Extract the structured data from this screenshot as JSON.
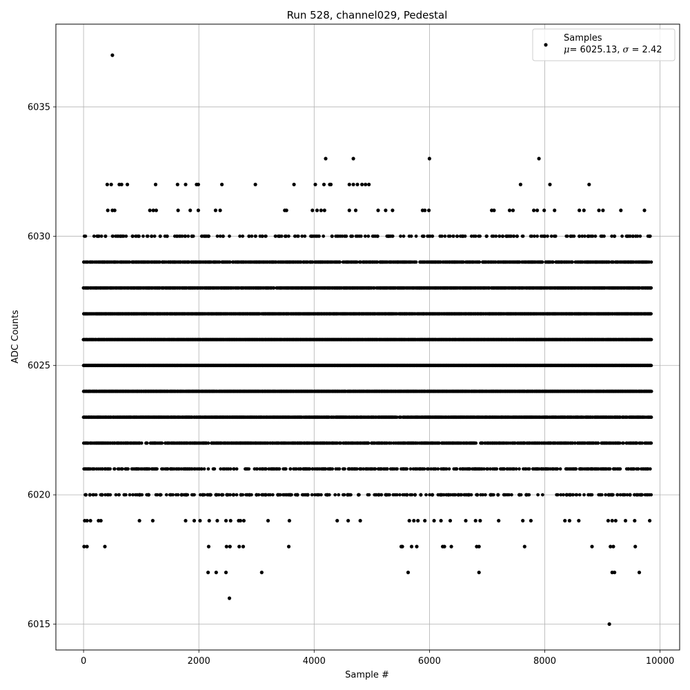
{
  "chart_data": {
    "type": "scatter",
    "title": "Run 528, channel029, Pedestal",
    "xlabel": "Sample #",
    "ylabel": "ADC Counts",
    "xlim": [
      -480,
      10340
    ],
    "ylim": [
      6014.0,
      6038.2
    ],
    "xticks": [
      0,
      2000,
      4000,
      6000,
      8000,
      10000
    ],
    "xtick_labels": [
      "0",
      "2000",
      "4000",
      "6000",
      "8000",
      "10000"
    ],
    "yticks": [
      6015,
      6020,
      6025,
      6030,
      6035
    ],
    "ytick_labels": [
      "6015",
      "6020",
      "6025",
      "6030",
      "6035"
    ],
    "grid": true,
    "legend_position": "top-right",
    "marker_color": "#000000",
    "series": [
      {
        "name": "Samples",
        "stats_label": "= 6025.13, ",
        "mu_symbol": "μ",
        "sigma_symbol": "σ",
        "stats_tail": " = 2.42",
        "x_range": [
          0,
          9850
        ],
        "n_samples": 9850,
        "mean": 6025.13,
        "std": 2.42,
        "bands": [
          {
            "y": 6022,
            "density": 0.55
          },
          {
            "y": 6023,
            "density": 0.8
          },
          {
            "y": 6024,
            "density": 0.95
          },
          {
            "y": 6025,
            "density": 1.0
          },
          {
            "y": 6026,
            "density": 0.97
          },
          {
            "y": 6027,
            "density": 0.85
          },
          {
            "y": 6028,
            "density": 0.8
          },
          {
            "y": 6029,
            "density": 0.6
          },
          {
            "y": 6021,
            "density": 0.35
          },
          {
            "y": 6020,
            "density": 0.18
          },
          {
            "y": 6030,
            "density": 0.15
          }
        ],
        "points": [
          [
            500,
            6037
          ],
          [
            4200,
            6033
          ],
          [
            4680,
            6033
          ],
          [
            6000,
            6033
          ],
          [
            7900,
            6033
          ],
          [
            2530,
            6016
          ],
          [
            9120,
            6015
          ],
          [
            410,
            6032
          ],
          [
            480,
            6032
          ],
          [
            620,
            6032
          ],
          [
            660,
            6032
          ],
          [
            760,
            6032
          ],
          [
            1250,
            6032
          ],
          [
            1630,
            6032
          ],
          [
            1770,
            6032
          ],
          [
            1960,
            6032
          ],
          [
            1990,
            6032
          ],
          [
            2400,
            6032
          ],
          [
            2980,
            6032
          ],
          [
            3650,
            6032
          ],
          [
            4020,
            6032
          ],
          [
            4170,
            6032
          ],
          [
            4270,
            6032
          ],
          [
            4290,
            6032
          ],
          [
            4610,
            6032
          ],
          [
            4680,
            6032
          ],
          [
            4750,
            6032
          ],
          [
            4830,
            6032
          ],
          [
            4890,
            6032
          ],
          [
            4950,
            6032
          ],
          [
            7580,
            6032
          ],
          [
            8090,
            6032
          ],
          [
            8770,
            6032
          ],
          [
            420,
            6031
          ],
          [
            500,
            6031
          ],
          [
            540,
            6031
          ],
          [
            1150,
            6031
          ],
          [
            1210,
            6031
          ],
          [
            1260,
            6031
          ],
          [
            1640,
            6031
          ],
          [
            1850,
            6031
          ],
          [
            1990,
            6031
          ],
          [
            2290,
            6031
          ],
          [
            2370,
            6031
          ],
          [
            3490,
            6031
          ],
          [
            3520,
            6031
          ],
          [
            3970,
            6031
          ],
          [
            4050,
            6031
          ],
          [
            4120,
            6031
          ],
          [
            4180,
            6031
          ],
          [
            4610,
            6031
          ],
          [
            4720,
            6031
          ],
          [
            5110,
            6031
          ],
          [
            5240,
            6031
          ],
          [
            5360,
            6031
          ],
          [
            5880,
            6031
          ],
          [
            5920,
            6031
          ],
          [
            5990,
            6031
          ],
          [
            7080,
            6031
          ],
          [
            7120,
            6031
          ],
          [
            7390,
            6031
          ],
          [
            7450,
            6031
          ],
          [
            7810,
            6031
          ],
          [
            7870,
            6031
          ],
          [
            7990,
            6031
          ],
          [
            8170,
            6031
          ],
          [
            8600,
            6031
          ],
          [
            8680,
            6031
          ],
          [
            8940,
            6031
          ],
          [
            9010,
            6031
          ],
          [
            9320,
            6031
          ],
          [
            9730,
            6031
          ],
          [
            250,
            6030
          ],
          [
            380,
            6030
          ],
          [
            640,
            6030
          ],
          [
            850,
            6030
          ],
          [
            960,
            6030
          ],
          [
            1180,
            6030
          ],
          [
            1330,
            6030
          ],
          [
            1450,
            6030
          ],
          [
            1620,
            6030
          ],
          [
            1880,
            6030
          ],
          [
            2170,
            6030
          ],
          [
            2420,
            6030
          ],
          [
            2870,
            6030
          ],
          [
            3100,
            6030
          ],
          [
            3400,
            6030
          ],
          [
            3500,
            6030
          ],
          [
            3960,
            6030
          ],
          [
            4310,
            6030
          ],
          [
            4640,
            6030
          ],
          [
            5100,
            6030
          ],
          [
            5290,
            6030
          ],
          [
            5900,
            6030
          ],
          [
            6480,
            6030
          ],
          [
            6580,
            6030
          ],
          [
            6990,
            6030
          ],
          [
            7270,
            6030
          ],
          [
            7340,
            6030
          ],
          [
            7520,
            6030
          ],
          [
            8000,
            6030
          ],
          [
            8450,
            6030
          ],
          [
            8600,
            6030
          ],
          [
            8750,
            6030
          ],
          [
            9210,
            6030
          ],
          [
            9430,
            6030
          ],
          [
            9530,
            6030
          ],
          [
            9820,
            6030
          ],
          [
            40,
            6020
          ],
          [
            110,
            6020
          ],
          [
            320,
            6020
          ],
          [
            970,
            6020
          ],
          [
            1130,
            6020
          ],
          [
            1330,
            6020
          ],
          [
            1700,
            6020
          ],
          [
            1780,
            6020
          ],
          [
            2070,
            6020
          ],
          [
            2200,
            6020
          ],
          [
            2300,
            6020
          ],
          [
            2400,
            6020
          ],
          [
            2490,
            6020
          ],
          [
            2600,
            6020
          ],
          [
            2730,
            6020
          ],
          [
            2880,
            6020
          ],
          [
            3000,
            6020
          ],
          [
            3160,
            6020
          ],
          [
            3370,
            6020
          ],
          [
            3590,
            6020
          ],
          [
            3710,
            6020
          ],
          [
            3890,
            6020
          ],
          [
            4230,
            6020
          ],
          [
            4580,
            6020
          ],
          [
            4770,
            6020
          ],
          [
            5120,
            6020
          ],
          [
            5250,
            6020
          ],
          [
            5610,
            6020
          ],
          [
            5750,
            6020
          ],
          [
            5850,
            6020
          ],
          [
            6050,
            6020
          ],
          [
            6200,
            6020
          ],
          [
            6330,
            6020
          ],
          [
            6500,
            6020
          ],
          [
            6680,
            6020
          ],
          [
            6830,
            6020
          ],
          [
            7060,
            6020
          ],
          [
            7190,
            6020
          ],
          [
            7560,
            6020
          ],
          [
            7680,
            6020
          ],
          [
            8380,
            6020
          ],
          [
            8440,
            6020
          ],
          [
            9110,
            6020
          ],
          [
            9170,
            6020
          ],
          [
            9480,
            6020
          ],
          [
            9600,
            6020
          ],
          [
            9670,
            6020
          ],
          [
            20,
            6019
          ],
          [
            60,
            6019
          ],
          [
            120,
            6019
          ],
          [
            260,
            6019
          ],
          [
            300,
            6019
          ],
          [
            970,
            6019
          ],
          [
            1200,
            6019
          ],
          [
            1770,
            6019
          ],
          [
            1920,
            6019
          ],
          [
            2020,
            6019
          ],
          [
            2180,
            6019
          ],
          [
            2320,
            6019
          ],
          [
            2470,
            6019
          ],
          [
            2550,
            6019
          ],
          [
            2690,
            6019
          ],
          [
            2720,
            6019
          ],
          [
            2780,
            6019
          ],
          [
            3200,
            6019
          ],
          [
            3570,
            6019
          ],
          [
            4400,
            6019
          ],
          [
            4590,
            6019
          ],
          [
            4800,
            6019
          ],
          [
            5650,
            6019
          ],
          [
            5730,
            6019
          ],
          [
            5800,
            6019
          ],
          [
            5920,
            6019
          ],
          [
            6080,
            6019
          ],
          [
            6200,
            6019
          ],
          [
            6360,
            6019
          ],
          [
            6630,
            6019
          ],
          [
            6800,
            6019
          ],
          [
            6880,
            6019
          ],
          [
            7200,
            6019
          ],
          [
            7620,
            6019
          ],
          [
            7760,
            6019
          ],
          [
            8350,
            6019
          ],
          [
            8430,
            6019
          ],
          [
            8590,
            6019
          ],
          [
            9100,
            6019
          ],
          [
            9170,
            6019
          ],
          [
            9230,
            6019
          ],
          [
            9400,
            6019
          ],
          [
            9560,
            6019
          ],
          [
            9820,
            6019
          ],
          [
            10,
            6018
          ],
          [
            60,
            6018
          ],
          [
            370,
            6018
          ],
          [
            2170,
            6018
          ],
          [
            2480,
            6018
          ],
          [
            2540,
            6018
          ],
          [
            2700,
            6018
          ],
          [
            2770,
            6018
          ],
          [
            3560,
            6018
          ],
          [
            5510,
            6018
          ],
          [
            5530,
            6018
          ],
          [
            5690,
            6018
          ],
          [
            5780,
            6018
          ],
          [
            6230,
            6018
          ],
          [
            6260,
            6018
          ],
          [
            6380,
            6018
          ],
          [
            6820,
            6018
          ],
          [
            6860,
            6018
          ],
          [
            7650,
            6018
          ],
          [
            8820,
            6018
          ],
          [
            9140,
            6018
          ],
          [
            9190,
            6018
          ],
          [
            9570,
            6018
          ],
          [
            2160,
            6017
          ],
          [
            2300,
            6017
          ],
          [
            2470,
            6017
          ],
          [
            3090,
            6017
          ],
          [
            5630,
            6017
          ],
          [
            6860,
            6017
          ],
          [
            9170,
            6017
          ],
          [
            9210,
            6017
          ],
          [
            9640,
            6017
          ]
        ]
      }
    ]
  }
}
